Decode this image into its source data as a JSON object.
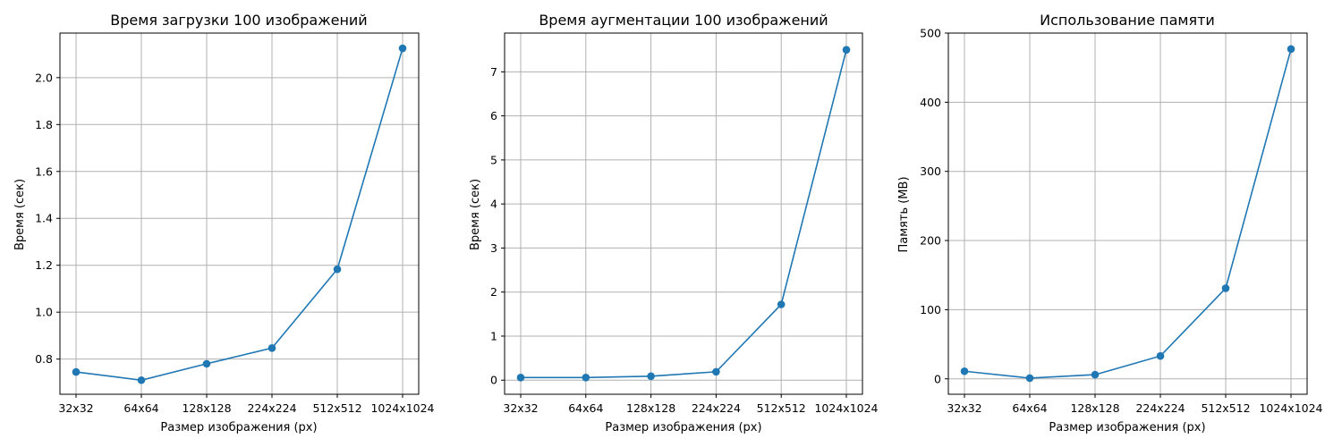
{
  "colors": {
    "series": "#1f77b4",
    "grid": "#b0b0b0"
  },
  "chart_data": [
    {
      "type": "line",
      "title": "Время загрузки 100 изображений",
      "xlabel": "Размер изображения (px)",
      "ylabel": "Время (сек)",
      "categories": [
        "32x32",
        "64x64",
        "128x128",
        "224x224",
        "512x512",
        "1024x1024"
      ],
      "values": [
        0.745,
        0.71,
        0.78,
        0.847,
        1.183,
        2.125
      ],
      "ylim": [
        0.65,
        2.19
      ],
      "yticks": [
        0.8,
        1.0,
        1.2,
        1.4,
        1.6,
        1.8,
        2.0
      ],
      "ytick_labels": [
        "0.8",
        "1.0",
        "1.2",
        "1.4",
        "1.6",
        "1.8",
        "2.0"
      ],
      "grid": true,
      "marker": "circle"
    },
    {
      "type": "line",
      "title": "Время аугментации 100 изображений",
      "xlabel": "Размер изображения (px)",
      "ylabel": "Время (сек)",
      "categories": [
        "32x32",
        "64x64",
        "128x128",
        "224x224",
        "512x512",
        "1024x1024"
      ],
      "values": [
        0.06,
        0.06,
        0.09,
        0.19,
        1.72,
        7.5
      ],
      "ylim": [
        -0.32,
        7.88
      ],
      "yticks": [
        0,
        1,
        2,
        3,
        4,
        5,
        6,
        7
      ],
      "ytick_labels": [
        "0",
        "1",
        "2",
        "3",
        "4",
        "5",
        "6",
        "7"
      ],
      "grid": true,
      "marker": "circle"
    },
    {
      "type": "line",
      "title": "Использование памяти",
      "xlabel": "Размер изображения (px)",
      "ylabel": "Память (MB)",
      "categories": [
        "32x32",
        "64x64",
        "128x128",
        "224x224",
        "512x512",
        "1024x1024"
      ],
      "values": [
        11,
        1,
        6,
        33,
        131,
        477
      ],
      "ylim": [
        -22.3,
        500
      ],
      "yticks": [
        0,
        100,
        200,
        300,
        400,
        500
      ],
      "ytick_labels": [
        "0",
        "100",
        "200",
        "300",
        "400",
        "500"
      ],
      "grid": true,
      "marker": "circle"
    }
  ]
}
